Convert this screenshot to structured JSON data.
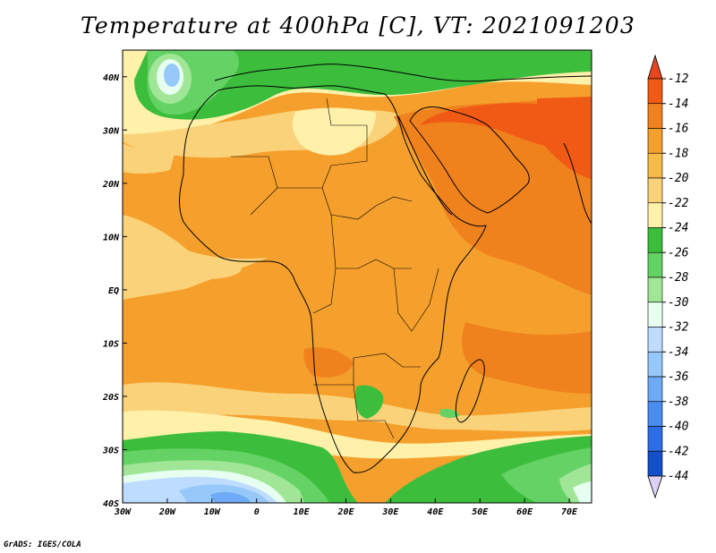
{
  "title": "Temperature at 400hPa [C], VT: 2021091203",
  "credit": "GrADS: IGES/COLA",
  "map": {
    "lon_range": [
      -30,
      75
    ],
    "lat_range": [
      -40,
      45
    ],
    "lon_ticks": [
      {
        "lon": -30,
        "label": "30W"
      },
      {
        "lon": -20,
        "label": "20W"
      },
      {
        "lon": -10,
        "label": "10W"
      },
      {
        "lon": 0,
        "label": "0"
      },
      {
        "lon": 10,
        "label": "10E"
      },
      {
        "lon": 20,
        "label": "20E"
      },
      {
        "lon": 30,
        "label": "30E"
      },
      {
        "lon": 40,
        "label": "40E"
      },
      {
        "lon": 50,
        "label": "50E"
      },
      {
        "lon": 60,
        "label": "60E"
      },
      {
        "lon": 70,
        "label": "70E"
      }
    ],
    "lat_ticks": [
      {
        "lat": 40,
        "label": "40N"
      },
      {
        "lat": 30,
        "label": "30N"
      },
      {
        "lat": 20,
        "label": "20N"
      },
      {
        "lat": 10,
        "label": "10N"
      },
      {
        "lat": 0,
        "label": "EQ"
      },
      {
        "lat": -10,
        "label": "10S"
      },
      {
        "lat": -20,
        "label": "20S"
      },
      {
        "lat": -30,
        "label": "30S"
      },
      {
        "lat": -40,
        "label": "40S"
      }
    ]
  },
  "colorbar": {
    "labels": [
      "-12",
      "-14",
      "-16",
      "-18",
      "-20",
      "-22",
      "-24",
      "-26",
      "-28",
      "-30",
      "-32",
      "-34",
      "-36",
      "-38",
      "-40",
      "-42",
      "-44"
    ],
    "colors": [
      "#f05a14",
      "#f0821e",
      "#f5a02d",
      "#f5bb48",
      "#fad27a",
      "#fff0aa",
      "#3cbe3c",
      "#64d264",
      "#a0e696",
      "#e6fff0",
      "#bedcff",
      "#96c8fa",
      "#6eaaf5",
      "#4a8cf0",
      "#2d6ee6",
      "#1450c8",
      "#0a1e78"
    ],
    "top_triangle_color": "#e6461e",
    "bottom_triangle_color": "#dcd2f5"
  },
  "field": [
    {
      "lon_min": -30,
      "lon_max": 75,
      "lat_min": -40,
      "lat_max": 45,
      "color": "#f5a02d"
    },
    {
      "lon_min": -30,
      "lon_max": 75,
      "lat_min": 37,
      "lat_max": 45,
      "color": "#3cbe3c"
    },
    {
      "lon_min": -30,
      "lon_max": 75,
      "lat_min": -40,
      "lat_max": -27,
      "color": "#3cbe3c"
    },
    {
      "lon_min": 40,
      "lon_max": 75,
      "lat_min": 5,
      "lat_max": 30,
      "color": "#f0821e"
    }
  ]
}
